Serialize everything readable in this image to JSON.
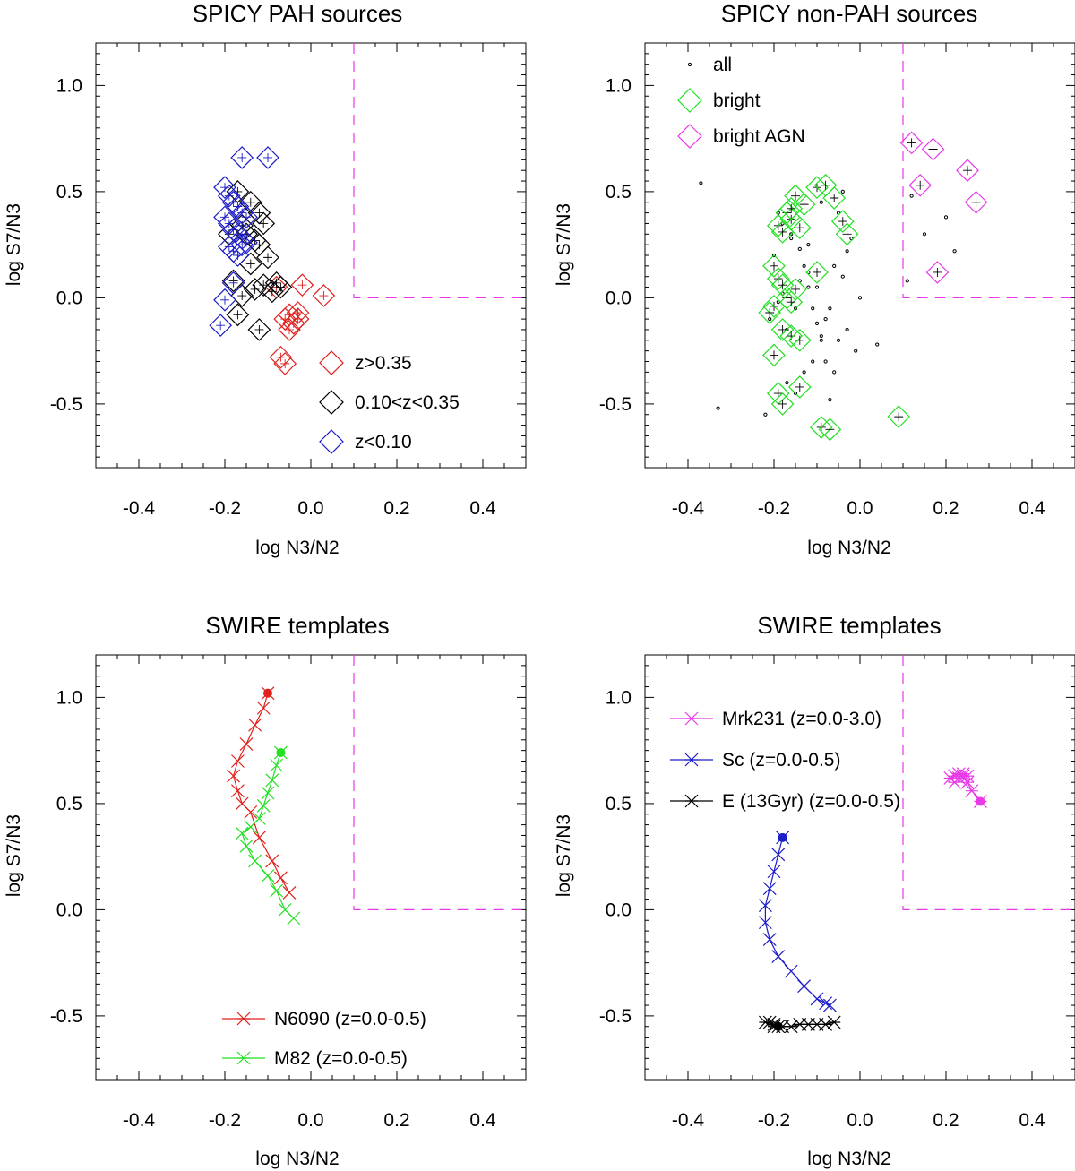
{
  "chart_data": [
    {
      "id": "p1",
      "type": "scatter",
      "title": "SPICY PAH sources",
      "xlabel": "log N3/N2",
      "ylabel": "log S7/N3",
      "xlim": [
        -0.5,
        0.5
      ],
      "ylim": [
        -0.8,
        1.2
      ],
      "xticks": [
        -0.4,
        -0.2,
        0.0,
        0.2,
        0.4
      ],
      "yticks": [
        -0.5,
        0.0,
        0.5,
        1.0
      ],
      "xtick_labels": [
        "-0.4",
        "-0.2",
        "0.0",
        "0.2",
        "0.4"
      ],
      "ytick_labels": [
        "-0.5",
        "0.0",
        "0.5",
        "1.0"
      ],
      "agn_boundary": {
        "x": 0.1,
        "y": 0.0,
        "color": "#e838e8"
      },
      "legend_position": "bottom-right",
      "series": [
        {
          "name": "z>0.35",
          "color": "#e0201c",
          "marker": "diamond",
          "x": [
            -0.08,
            -0.05,
            -0.03,
            0.03,
            -0.02,
            -0.04,
            -0.06,
            -0.05,
            -0.03,
            -0.07,
            -0.06
          ],
          "y": [
            0.05,
            -0.08,
            -0.1,
            0.01,
            0.06,
            -0.12,
            -0.1,
            -0.15,
            -0.07,
            -0.28,
            -0.31
          ]
        },
        {
          "name": "0.10<z<0.35",
          "color": "#000000",
          "marker": "diamond",
          "x": [
            -0.17,
            -0.14,
            -0.12,
            -0.11,
            -0.16,
            -0.15,
            -0.13,
            -0.12,
            -0.1,
            -0.08,
            -0.09,
            -0.07,
            -0.11,
            -0.13,
            -0.16,
            -0.18,
            -0.19,
            -0.14,
            -0.17,
            -0.12
          ],
          "y": [
            0.5,
            0.45,
            0.4,
            0.35,
            0.34,
            0.3,
            0.27,
            0.25,
            0.19,
            0.07,
            0.03,
            0.05,
            0.06,
            0.04,
            0.01,
            0.08,
            0.3,
            0.16,
            -0.08,
            -0.15
          ]
        },
        {
          "name": "z<0.10",
          "color": "#1c1cc8",
          "marker": "diamond",
          "x": [
            -0.16,
            -0.1,
            -0.2,
            -0.19,
            -0.18,
            -0.17,
            -0.16,
            -0.15,
            -0.2,
            -0.19,
            -0.18,
            -0.17,
            -0.16,
            -0.15,
            -0.19,
            -0.18,
            -0.17,
            -0.16,
            -0.21,
            -0.2,
            -0.18
          ],
          "y": [
            0.66,
            0.66,
            0.52,
            0.48,
            0.45,
            0.43,
            0.4,
            0.38,
            0.38,
            0.35,
            0.32,
            0.3,
            0.28,
            0.26,
            0.24,
            0.22,
            0.2,
            0.25,
            -0.13,
            -0.01,
            0.07
          ]
        }
      ]
    },
    {
      "id": "p2",
      "type": "scatter",
      "title": "SPICY non-PAH sources",
      "xlabel": "log N3/N2",
      "ylabel": "log S7/N3",
      "xlim": [
        -0.5,
        0.5
      ],
      "ylim": [
        -0.8,
        1.2
      ],
      "xticks": [
        -0.4,
        -0.2,
        0.0,
        0.2,
        0.4
      ],
      "yticks": [
        -0.5,
        0.0,
        0.5,
        1.0
      ],
      "xtick_labels": [
        "-0.4",
        "-0.2",
        "0.0",
        "0.2",
        "0.4"
      ],
      "ytick_labels": [
        "-0.5",
        "0.0",
        "0.5",
        "1.0"
      ],
      "agn_boundary": {
        "x": 0.1,
        "y": 0.0,
        "color": "#e838e8"
      },
      "legend_position": "top-left",
      "series": [
        {
          "name": "all",
          "color": "#000000",
          "marker": "dot",
          "x": [
            -0.37,
            -0.33,
            -0.19,
            -0.16,
            -0.14,
            -0.13,
            -0.12,
            -0.11,
            -0.1,
            -0.09,
            -0.08,
            -0.07,
            -0.06,
            -0.05,
            -0.04,
            -0.03,
            -0.02,
            -0.01,
            0.0,
            0.04,
            -0.21,
            -0.2,
            -0.18,
            -0.17,
            -0.15,
            -0.14,
            -0.12,
            -0.11,
            -0.09,
            -0.08,
            -0.06,
            -0.05,
            -0.04,
            -0.22,
            -0.19,
            -0.17,
            -0.16,
            -0.13,
            -0.1,
            -0.07,
            -0.03,
            0.12,
            0.15,
            0.2,
            0.22,
            0.11,
            -0.18,
            -0.15,
            -0.12,
            -0.09
          ],
          "y": [
            0.54,
            -0.52,
            -0.02,
            0.3,
            0.23,
            0.15,
            0.05,
            -0.05,
            -0.12,
            -0.2,
            -0.3,
            -0.05,
            -0.35,
            0.4,
            0.1,
            -0.15,
            0.28,
            -0.25,
            0.0,
            -0.22,
            -0.1,
            0.2,
            0.35,
            -0.4,
            -0.45,
            0.08,
            0.25,
            -0.3,
            0.45,
            -0.1,
            0.15,
            -0.2,
            0.5,
            -0.55,
            0.4,
            -0.15,
            0.28,
            -0.35,
            0.05,
            -0.48,
            0.22,
            0.48,
            0.3,
            0.38,
            0.22,
            0.08,
            0.02,
            -0.05,
            0.12,
            -0.18
          ]
        },
        {
          "name": "bright",
          "color": "#22e022",
          "marker": "diamond",
          "x": [
            -0.1,
            -0.08,
            -0.06,
            -0.04,
            -0.03,
            -0.15,
            -0.13,
            -0.17,
            -0.16,
            -0.19,
            -0.18,
            -0.14,
            -0.2,
            -0.19,
            -0.18,
            -0.17,
            -0.16,
            -0.1,
            -0.15,
            -0.2,
            -0.21,
            -0.18,
            -0.16,
            -0.14,
            -0.2,
            -0.19,
            -0.18,
            -0.09,
            -0.07,
            0.09,
            -0.14,
            -0.16
          ],
          "y": [
            0.52,
            0.53,
            0.47,
            0.36,
            0.3,
            0.48,
            0.44,
            0.4,
            0.37,
            0.34,
            0.31,
            0.33,
            0.15,
            0.09,
            0.06,
            0.0,
            -0.02,
            0.12,
            0.04,
            -0.04,
            -0.07,
            -0.15,
            -0.18,
            -0.2,
            -0.27,
            -0.45,
            -0.5,
            -0.61,
            -0.62,
            -0.56,
            -0.42,
            0.42
          ]
        },
        {
          "name": "bright AGN",
          "color": "#e838e8",
          "marker": "diamond",
          "x": [
            0.12,
            0.17,
            0.25,
            0.14,
            0.27,
            0.18
          ],
          "y": [
            0.73,
            0.7,
            0.6,
            0.53,
            0.45,
            0.12
          ]
        }
      ]
    },
    {
      "id": "p3",
      "type": "line",
      "title": "SWIRE templates",
      "xlabel": "log N3/N2",
      "ylabel": "log S7/N3",
      "xlim": [
        -0.5,
        0.5
      ],
      "ylim": [
        -0.8,
        1.2
      ],
      "xticks": [
        -0.4,
        -0.2,
        0.0,
        0.2,
        0.4
      ],
      "yticks": [
        -0.5,
        0.0,
        0.5,
        1.0
      ],
      "xtick_labels": [
        "-0.4",
        "-0.2",
        "0.0",
        "0.2",
        "0.4"
      ],
      "ytick_labels": [
        "-0.5",
        "0.0",
        "0.5",
        "1.0"
      ],
      "agn_boundary": {
        "x": 0.1,
        "y": 0.0,
        "color": "#e838e8"
      },
      "legend_position": "bottom-right",
      "series": [
        {
          "name": "N6090 (z=0.0-0.5)",
          "color": "#e0201c",
          "marker": "x",
          "x": [
            -0.1,
            -0.11,
            -0.13,
            -0.15,
            -0.17,
            -0.18,
            -0.17,
            -0.16,
            -0.14,
            -0.12,
            -0.09,
            -0.07,
            -0.05
          ],
          "y": [
            1.02,
            0.95,
            0.87,
            0.78,
            0.7,
            0.63,
            0.56,
            0.5,
            0.46,
            0.34,
            0.23,
            0.15,
            0.08
          ]
        },
        {
          "name": "M82 (z=0.0-0.5)",
          "color": "#22e022",
          "marker": "x",
          "x": [
            -0.07,
            -0.08,
            -0.09,
            -0.1,
            -0.11,
            -0.12,
            -0.14,
            -0.16,
            -0.15,
            -0.13,
            -0.1,
            -0.08,
            -0.06,
            -0.04
          ],
          "y": [
            0.74,
            0.68,
            0.61,
            0.55,
            0.49,
            0.43,
            0.39,
            0.36,
            0.3,
            0.23,
            0.16,
            0.09,
            0.0,
            -0.04
          ]
        }
      ]
    },
    {
      "id": "p4",
      "type": "line",
      "title": "SWIRE templates",
      "xlabel": "log N3/N2",
      "ylabel": "log S7/N3",
      "xlim": [
        -0.5,
        0.5
      ],
      "ylim": [
        -0.8,
        1.2
      ],
      "xticks": [
        -0.4,
        -0.2,
        0.0,
        0.2,
        0.4
      ],
      "yticks": [
        -0.5,
        0.0,
        0.5,
        1.0
      ],
      "xtick_labels": [
        "-0.4",
        "-0.2",
        "0.0",
        "0.2",
        "0.4"
      ],
      "ytick_labels": [
        "-0.5",
        "0.0",
        "0.5",
        "1.0"
      ],
      "agn_boundary": {
        "x": 0.1,
        "y": 0.0,
        "color": "#e838e8"
      },
      "legend_position": "top-left",
      "series": [
        {
          "name": "Mrk231 (z=0.0-3.0)",
          "color": "#e838e8",
          "marker": "asterisk",
          "x": [
            0.28,
            0.26,
            0.25,
            0.24,
            0.23,
            0.22,
            0.21,
            0.22,
            0.23,
            0.24,
            0.25
          ],
          "y": [
            0.51,
            0.56,
            0.6,
            0.63,
            0.64,
            0.63,
            0.62,
            0.6,
            0.62,
            0.64,
            0.63
          ]
        },
        {
          "name": "Sc (z=0.0-0.5)",
          "color": "#1c1cc8",
          "marker": "x",
          "x": [
            -0.18,
            -0.19,
            -0.2,
            -0.21,
            -0.22,
            -0.22,
            -0.21,
            -0.19,
            -0.16,
            -0.13,
            -0.1,
            -0.08,
            -0.07
          ],
          "y": [
            0.34,
            0.26,
            0.18,
            0.1,
            0.02,
            -0.06,
            -0.14,
            -0.22,
            -0.29,
            -0.36,
            -0.42,
            -0.44,
            -0.45
          ]
        },
        {
          "name": "E (13Gyr) (z=0.0-0.5)",
          "color": "#000000",
          "marker": "asterisk",
          "x": [
            -0.19,
            -0.2,
            -0.21,
            -0.22,
            -0.2,
            -0.18,
            -0.16,
            -0.14,
            -0.12,
            -0.1,
            -0.08,
            -0.06
          ],
          "y": [
            -0.55,
            -0.54,
            -0.53,
            -0.53,
            -0.55,
            -0.55,
            -0.55,
            -0.54,
            -0.54,
            -0.54,
            -0.54,
            -0.53
          ]
        }
      ]
    }
  ]
}
